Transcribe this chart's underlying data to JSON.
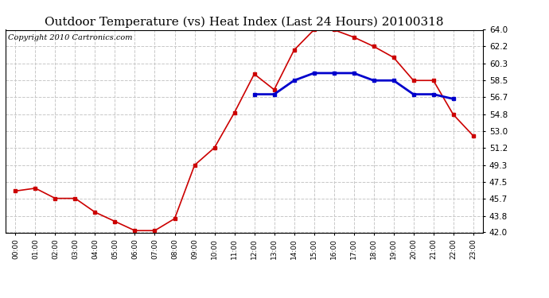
{
  "title": "Outdoor Temperature (vs) Heat Index (Last 24 Hours) 20100318",
  "copyright": "Copyright 2010 Cartronics.com",
  "hours": [
    "00:00",
    "01:00",
    "02:00",
    "03:00",
    "04:00",
    "05:00",
    "06:00",
    "07:00",
    "08:00",
    "09:00",
    "10:00",
    "11:00",
    "12:00",
    "13:00",
    "14:00",
    "15:00",
    "16:00",
    "17:00",
    "18:00",
    "19:00",
    "20:00",
    "21:00",
    "22:00",
    "23:00"
  ],
  "temp": [
    46.5,
    46.8,
    45.7,
    45.7,
    44.2,
    43.2,
    42.2,
    42.2,
    43.5,
    49.3,
    51.2,
    55.0,
    59.2,
    57.5,
    61.8,
    64.0,
    64.0,
    63.2,
    62.2,
    61.0,
    58.5,
    58.5,
    54.8,
    52.5
  ],
  "heat_index": [
    null,
    null,
    null,
    null,
    null,
    null,
    null,
    null,
    null,
    null,
    null,
    null,
    57.0,
    57.0,
    58.5,
    59.3,
    59.3,
    59.3,
    58.5,
    58.5,
    57.0,
    57.0,
    56.5,
    null
  ],
  "temp_color": "#cc0000",
  "heat_color": "#0000cc",
  "ylim": [
    42.0,
    64.0
  ],
  "yticks": [
    42.0,
    43.8,
    45.7,
    47.5,
    49.3,
    51.2,
    53.0,
    54.8,
    56.7,
    58.5,
    60.3,
    62.2,
    64.0
  ],
  "background_color": "#ffffff",
  "plot_bg_color": "#ffffff",
  "grid_color": "#c8c8c8",
  "title_fontsize": 11,
  "copyright_fontsize": 7
}
